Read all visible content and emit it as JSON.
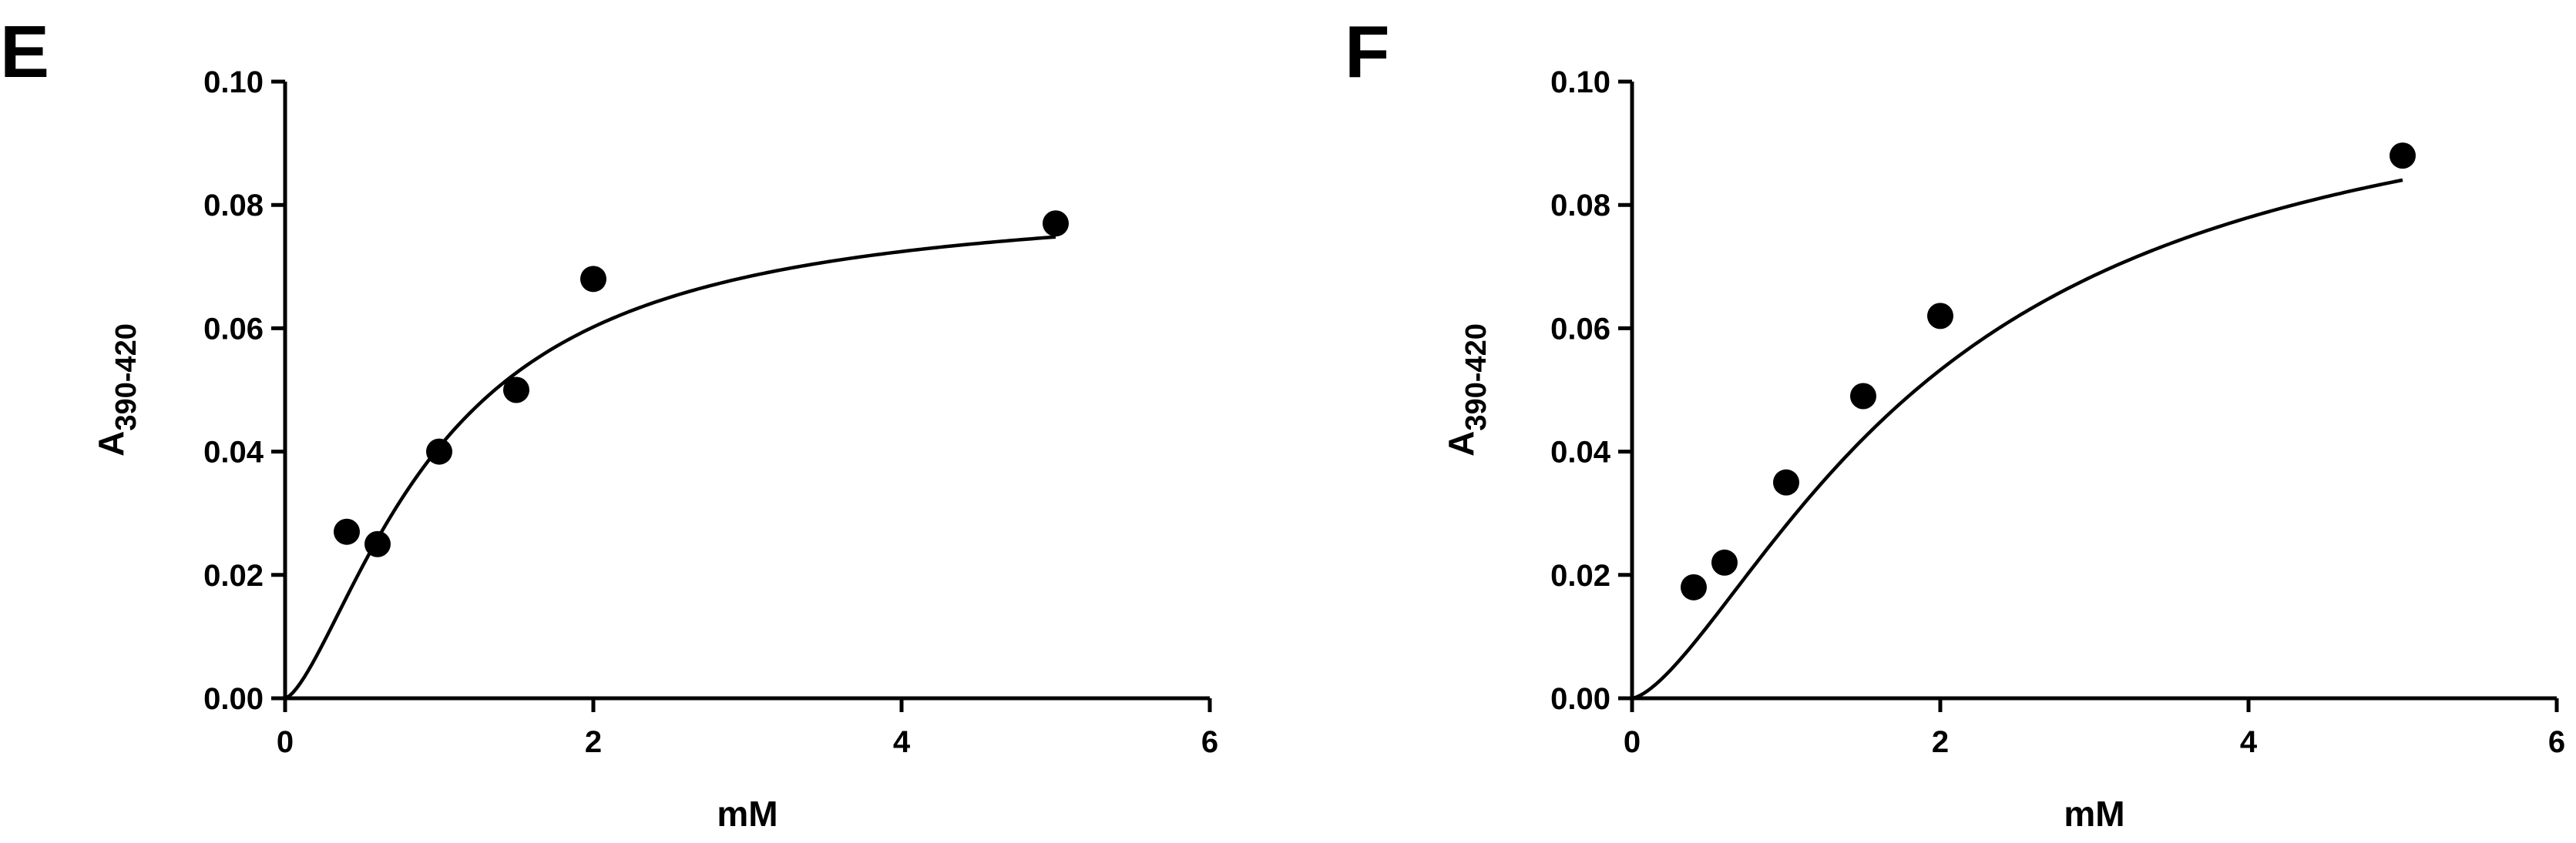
{
  "chart_data": [
    {
      "panel_label": "E",
      "type": "scatter",
      "xlabel": "mM",
      "ylabel_main": "A",
      "ylabel_sub": "390-420",
      "xlim": [
        0,
        6
      ],
      "ylim": [
        0.0,
        0.1
      ],
      "xticks": [
        "0",
        "2",
        "4",
        "6"
      ],
      "yticks": [
        "0.00",
        "0.02",
        "0.04",
        "0.06",
        "0.08",
        "0.10"
      ],
      "points": [
        {
          "x": 0.4,
          "y": 0.027
        },
        {
          "x": 0.6,
          "y": 0.025
        },
        {
          "x": 1.0,
          "y": 0.04
        },
        {
          "x": 1.5,
          "y": 0.05
        },
        {
          "x": 2.0,
          "y": 0.068
        },
        {
          "x": 5.0,
          "y": 0.077
        }
      ],
      "fit": {
        "model": "hill",
        "vmax": 0.0815,
        "k": 1.0,
        "n": 1.5,
        "x_range": [
          0,
          5
        ]
      }
    },
    {
      "panel_label": "F",
      "type": "scatter",
      "xlabel": "mM",
      "ylabel_main": "A",
      "ylabel_sub": "390-420",
      "xlim": [
        0,
        6
      ],
      "ylim": [
        0.0,
        0.1
      ],
      "xticks": [
        "0",
        "2",
        "4",
        "6"
      ],
      "yticks": [
        "0.00",
        "0.02",
        "0.04",
        "0.06",
        "0.08",
        "0.10"
      ],
      "points": [
        {
          "x": 0.4,
          "y": 0.018
        },
        {
          "x": 0.6,
          "y": 0.022
        },
        {
          "x": 1.0,
          "y": 0.035
        },
        {
          "x": 1.5,
          "y": 0.049
        },
        {
          "x": 2.0,
          "y": 0.062
        },
        {
          "x": 5.0,
          "y": 0.088
        }
      ],
      "fit": {
        "model": "hill",
        "vmax": 0.1045,
        "k": 1.95,
        "n": 1.5,
        "x_range": [
          0,
          5
        ]
      }
    }
  ]
}
